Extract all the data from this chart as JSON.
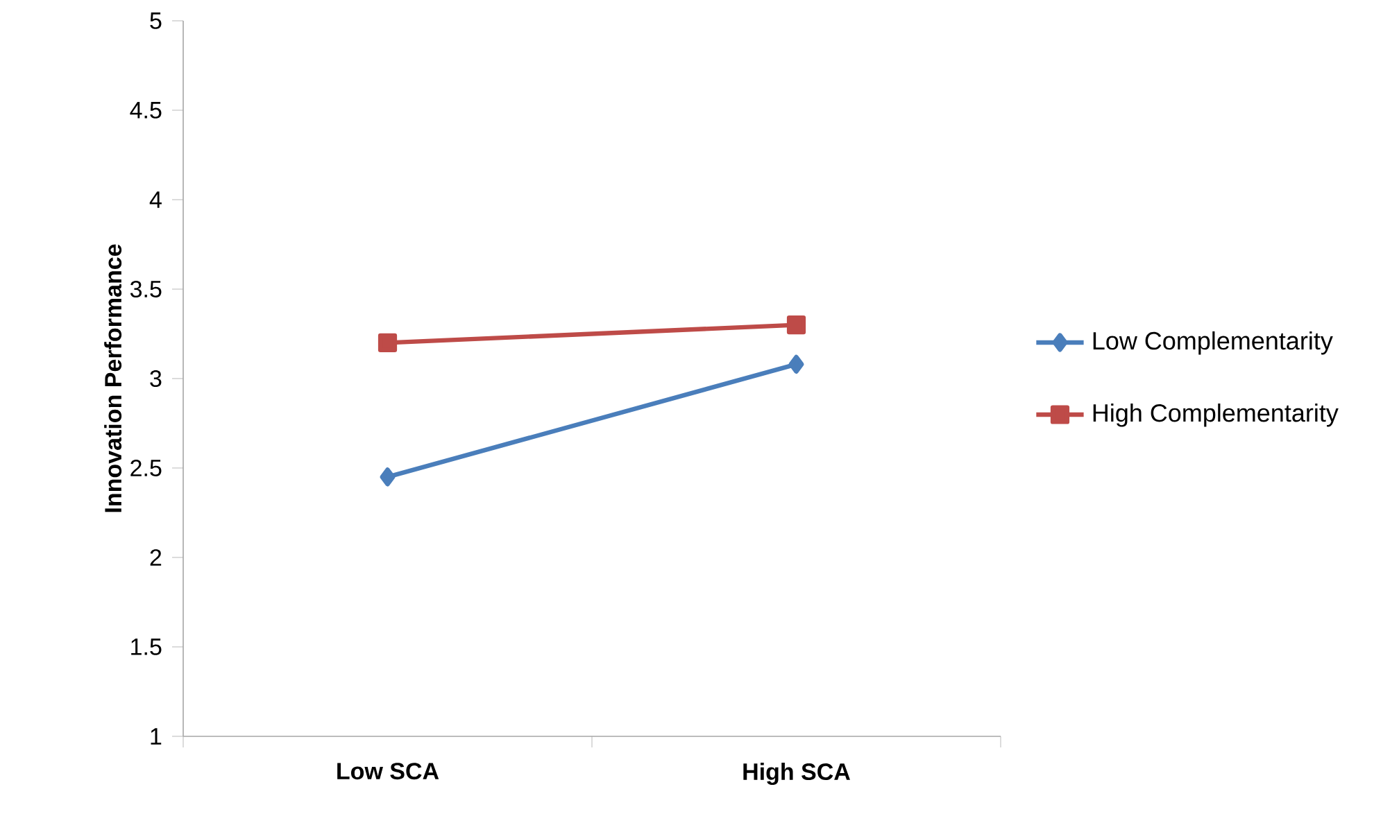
{
  "chart_data": {
    "type": "line",
    "ylabel": "Innovation Performance",
    "categories": [
      "Low SCA",
      "High SCA"
    ],
    "series": [
      {
        "name": "Low Complementarity",
        "color": "#4a7ebb",
        "marker": "diamond",
        "values": [
          2.45,
          3.08
        ]
      },
      {
        "name": "High Complementarity",
        "color": "#be4b48",
        "marker": "square",
        "values": [
          3.2,
          3.3
        ]
      }
    ],
    "ylim": [
      1,
      5
    ],
    "yticks": [
      1,
      1.5,
      2,
      2.5,
      3,
      3.5,
      4,
      4.5,
      5
    ],
    "grid": false,
    "legend": "right"
  }
}
